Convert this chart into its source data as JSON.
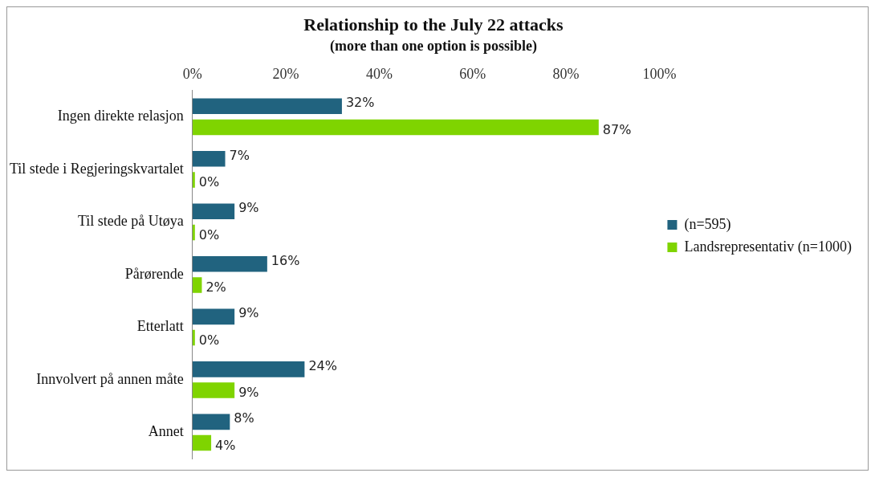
{
  "chart_data": {
    "type": "bar",
    "orientation": "horizontal",
    "title": "Relationship to the July 22 attacks",
    "subtitle": "(more than one option is possible)",
    "categories": [
      "Ingen direkte relasjon",
      "Til stede i Regjeringskvartalet",
      "Til stede på Utøya",
      "Pårørende",
      "Etterlatt",
      "Innvolvert på annen måte",
      "Annet"
    ],
    "series": [
      {
        "name": "(n=595)",
        "color": "#21637f",
        "values": [
          32,
          7,
          9,
          16,
          9,
          24,
          8
        ],
        "value_labels": [
          "32%",
          "7%",
          "9%",
          "16%",
          "9%",
          "24%",
          "8%"
        ]
      },
      {
        "name": "Landsrepresentativ (n=1000)",
        "color": "#7fd400",
        "values": [
          87,
          0,
          0,
          2,
          0,
          9,
          4
        ],
        "value_labels": [
          "87%",
          "0%",
          "0%",
          "2%",
          "0%",
          "9%",
          "4%"
        ]
      }
    ],
    "xlim": [
      0,
      100
    ],
    "xticks": [
      {
        "value": 0,
        "label": "0%"
      },
      {
        "value": 20,
        "label": "20%"
      },
      {
        "value": 40,
        "label": "40%"
      },
      {
        "value": 60,
        "label": "60%"
      },
      {
        "value": 80,
        "label": "80%"
      },
      {
        "value": 100,
        "label": "100%"
      }
    ],
    "grid": false,
    "legend": "right"
  }
}
